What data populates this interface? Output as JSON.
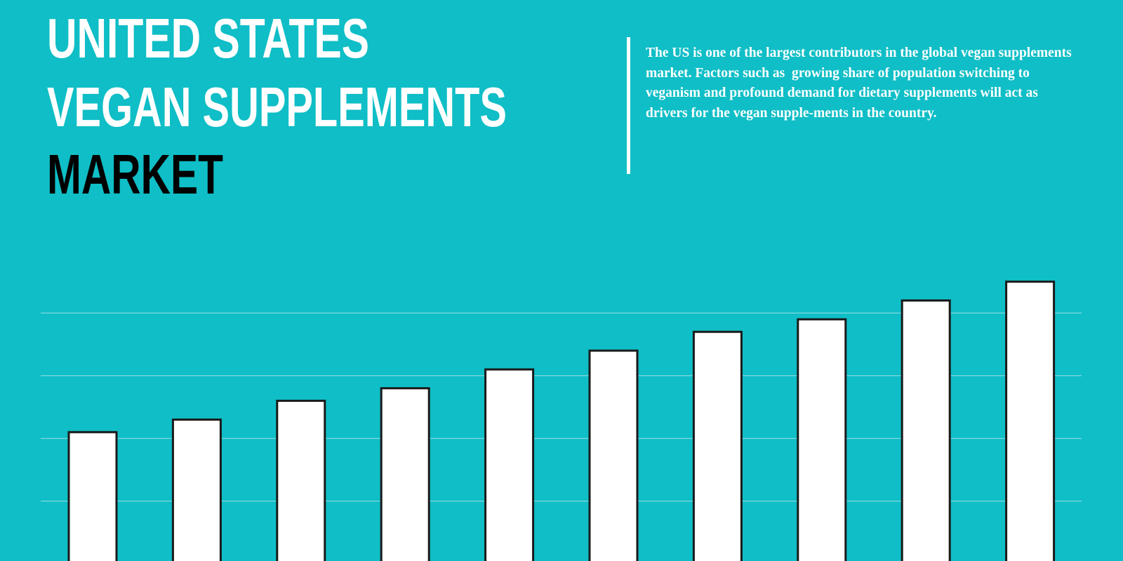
{
  "chart_data": {
    "type": "bar",
    "title_lines": [
      {
        "text": "UNITED STATES",
        "color": "#ffffff"
      },
      {
        "text": "VEGAN SUPPLEMENTS",
        "color": "#ffffff"
      },
      {
        "text": "MARKET",
        "color": "#000000"
      }
    ],
    "description": "The US is one of the largest contributors in the global vegan supplements market. Factors such as  growing share of population switching to veganism and profound demand for dietary supplements will act as drivers for the vegan supple-ments in the country.",
    "categories": [
      null,
      null,
      null,
      null,
      null,
      null,
      null,
      null,
      null,
      null
    ],
    "values": [
      2.1,
      2.3,
      2.6,
      2.8,
      3.1,
      3.4,
      3.7,
      3.9,
      4.2,
      4.5
    ],
    "color": "#ffffff",
    "ylim": [
      0,
      5
    ],
    "yticks": [
      1,
      2,
      3,
      4
    ],
    "grid": true
  }
}
